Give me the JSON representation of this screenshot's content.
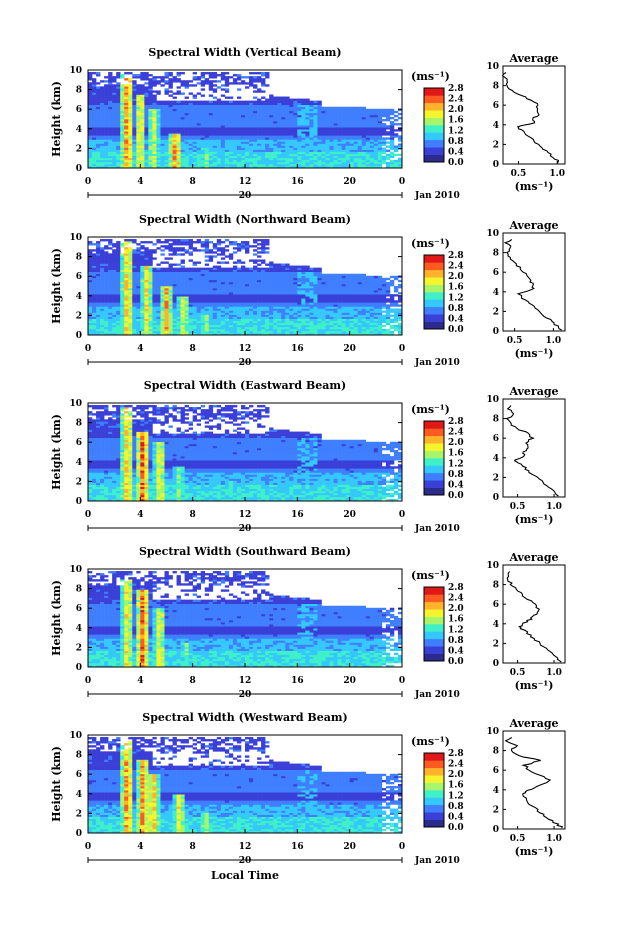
{
  "figure": {
    "xlabel_bottom": "Local Time",
    "colorbar": {
      "unit_label": "(ms⁻¹)",
      "ticks": [
        "2.8",
        "2.4",
        "2.0",
        "1.6",
        "1.2",
        "0.8",
        "0.4",
        "0.0"
      ],
      "range": [
        0,
        2.8
      ],
      "colormap": [
        "#2b2b8c",
        "#3a3fd8",
        "#3f7fff",
        "#35c8ff",
        "#3ff0c8",
        "#a8f56a",
        "#f5f52e",
        "#ffb32a",
        "#ff5a1f",
        "#e01818"
      ]
    }
  },
  "chart_data": [
    {
      "type": "heatmap",
      "title": "Spectral Width (Vertical Beam)",
      "ylabel": "Height (km)",
      "ylim": [
        0,
        10
      ],
      "xlim": [
        0,
        24
      ],
      "x_ticks": [
        "0",
        "4",
        "8",
        "12",
        "16",
        "20",
        "0"
      ],
      "date_label": "20",
      "month_label": "Jan 2010",
      "value_unit": "ms-1",
      "features": [
        {
          "time": 3.0,
          "height_top": 9.5,
          "peak": 2.6
        },
        {
          "time": 4.0,
          "height_top": 7.5,
          "peak": 2.2
        },
        {
          "time": 5.0,
          "height_top": 6.0,
          "peak": 2.0
        },
        {
          "time": 6.7,
          "height_top": 3.5,
          "peak": 2.6
        },
        {
          "time": 9.0,
          "height_top": 2.0,
          "peak": 1.6
        }
      ],
      "average": {
        "title": "Average",
        "xlabel": "(ms⁻¹)",
        "x_ticks": [
          "0.5",
          "1.0"
        ],
        "xlim": [
          0.3,
          1.1
        ],
        "y_ticks": [
          "0",
          "2",
          "4",
          "6",
          "8",
          "10"
        ],
        "ylim": [
          0,
          10
        ],
        "profile": {
          "height": [
            0.1,
            0.5,
            1,
            1.5,
            2,
            2.5,
            3,
            3.5,
            3.8,
            4.2,
            4.6,
            5,
            5.5,
            6,
            6.5,
            7,
            7.5,
            8,
            8.5,
            9,
            9.5
          ],
          "value": [
            1.02,
            0.98,
            0.9,
            0.82,
            0.75,
            0.68,
            0.6,
            0.52,
            0.5,
            0.7,
            0.68,
            0.74,
            0.72,
            0.75,
            0.68,
            0.52,
            0.42,
            0.34,
            0.35,
            0.3,
            0.38
          ]
        }
      }
    },
    {
      "type": "heatmap",
      "title": "Spectral Width (Northward Beam)",
      "ylabel": "Height (km)",
      "ylim": [
        0,
        10
      ],
      "xlim": [
        0,
        24
      ],
      "x_ticks": [
        "0",
        "4",
        "8",
        "12",
        "16",
        "20",
        "0"
      ],
      "date_label": "20",
      "month_label": "Jan 2010",
      "value_unit": "ms-1",
      "features": [
        {
          "time": 3.0,
          "height_top": 9.5,
          "peak": 2.4
        },
        {
          "time": 4.5,
          "height_top": 7.0,
          "peak": 2.2
        },
        {
          "time": 6.0,
          "height_top": 5.0,
          "peak": 2.4
        },
        {
          "time": 7.3,
          "height_top": 4.0,
          "peak": 2.0
        },
        {
          "time": 9.0,
          "height_top": 2.0,
          "peak": 1.8
        }
      ],
      "average": {
        "title": "Average",
        "xlabel": "(ms⁻¹)",
        "x_ticks": [
          "0.5",
          "1.0"
        ],
        "xlim": [
          0.35,
          1.15
        ],
        "y_ticks": [
          "0",
          "2",
          "4",
          "6",
          "8",
          "10"
        ],
        "ylim": [
          0,
          10
        ],
        "profile": {
          "height": [
            0.1,
            0.5,
            1,
            1.5,
            2,
            2.5,
            3,
            3.5,
            3.8,
            4.2,
            4.6,
            5,
            5.5,
            6,
            6.5,
            7,
            7.5,
            8,
            8.5,
            9,
            9.5
          ],
          "value": [
            1.1,
            1.05,
            0.98,
            0.9,
            0.82,
            0.74,
            0.66,
            0.58,
            0.56,
            0.72,
            0.74,
            0.7,
            0.66,
            0.62,
            0.56,
            0.5,
            0.44,
            0.4,
            0.44,
            0.4,
            0.46
          ]
        }
      }
    },
    {
      "type": "heatmap",
      "title": "Spectral Width (Eastward Beam)",
      "ylabel": "Height (km)",
      "ylim": [
        0,
        10
      ],
      "xlim": [
        0,
        24
      ],
      "x_ticks": [
        "0",
        "4",
        "8",
        "12",
        "16",
        "20",
        "0"
      ],
      "date_label": "20",
      "month_label": "Jan 2010",
      "value_unit": "ms-1",
      "features": [
        {
          "time": 3.0,
          "height_top": 9.5,
          "peak": 2.4
        },
        {
          "time": 4.2,
          "height_top": 7.0,
          "peak": 2.8
        },
        {
          "time": 5.5,
          "height_top": 6.0,
          "peak": 2.2
        },
        {
          "time": 7.0,
          "height_top": 3.5,
          "peak": 1.8
        },
        {
          "time": 11.0,
          "height_top": 2.0,
          "peak": 1.4
        }
      ],
      "average": {
        "title": "Average",
        "xlabel": "(ms⁻¹)",
        "x_ticks": [
          "0.5",
          "1.0"
        ],
        "xlim": [
          0.3,
          1.15
        ],
        "y_ticks": [
          "0",
          "2",
          "4",
          "6",
          "8",
          "10"
        ],
        "ylim": [
          0,
          10
        ],
        "profile": {
          "height": [
            0.1,
            0.5,
            1,
            1.5,
            2,
            2.5,
            3,
            3.5,
            3.8,
            4.2,
            4.6,
            5,
            5.5,
            6,
            6.5,
            7,
            7.5,
            8,
            8.5,
            9,
            9.5
          ],
          "value": [
            1.08,
            1.0,
            0.92,
            0.84,
            0.76,
            0.68,
            0.6,
            0.5,
            0.46,
            0.6,
            0.58,
            0.66,
            0.62,
            0.7,
            0.66,
            0.48,
            0.4,
            0.36,
            0.44,
            0.38,
            0.42
          ]
        }
      }
    },
    {
      "type": "heatmap",
      "title": "Spectral Width (Southward Beam)",
      "ylabel": "Height (km)",
      "ylim": [
        0,
        10
      ],
      "xlim": [
        0,
        24
      ],
      "x_ticks": [
        "0",
        "4",
        "8",
        "12",
        "16",
        "20",
        "0"
      ],
      "date_label": "20",
      "month_label": "Jan 2010",
      "value_unit": "ms-1",
      "features": [
        {
          "time": 3.0,
          "height_top": 9.0,
          "peak": 2.2
        },
        {
          "time": 4.2,
          "height_top": 8.0,
          "peak": 2.8
        },
        {
          "time": 5.5,
          "height_top": 6.0,
          "peak": 2.2
        },
        {
          "time": 7.5,
          "height_top": 2.5,
          "peak": 1.6
        },
        {
          "time": 12.0,
          "height_top": 1.5,
          "peak": 1.2
        }
      ],
      "average": {
        "title": "Average",
        "xlabel": "(ms⁻¹)",
        "x_ticks": [
          "0.5",
          "1.0"
        ],
        "xlim": [
          0.3,
          1.15
        ],
        "y_ticks": [
          "0",
          "2",
          "4",
          "6",
          "8",
          "10"
        ],
        "ylim": [
          0,
          10
        ],
        "profile": {
          "height": [
            0.1,
            0.5,
            1,
            1.5,
            2,
            2.5,
            3,
            3.5,
            3.8,
            4.2,
            4.6,
            5,
            5.5,
            6,
            6.5,
            7,
            7.5,
            8,
            8.5,
            9,
            9.5
          ],
          "value": [
            1.1,
            1.04,
            0.96,
            0.88,
            0.8,
            0.72,
            0.64,
            0.56,
            0.54,
            0.62,
            0.7,
            0.76,
            0.78,
            0.72,
            0.64,
            0.56,
            0.48,
            0.42,
            0.38,
            0.36,
            0.4
          ]
        }
      }
    },
    {
      "type": "heatmap",
      "title": "Spectral Width (Westward Beam)",
      "ylabel": "Height (km)",
      "ylim": [
        0,
        10
      ],
      "xlim": [
        0,
        24
      ],
      "x_ticks": [
        "0",
        "4",
        "8",
        "12",
        "16",
        "20",
        "0"
      ],
      "date_label": "20",
      "month_label": "Jan 2010",
      "value_unit": "ms-1",
      "features": [
        {
          "time": 3.0,
          "height_top": 9.5,
          "peak": 2.6
        },
        {
          "time": 4.2,
          "height_top": 7.5,
          "peak": 2.6
        },
        {
          "time": 5.0,
          "height_top": 6.0,
          "peak": 2.4
        },
        {
          "time": 7.0,
          "height_top": 4.0,
          "peak": 2.2
        },
        {
          "time": 9.0,
          "height_top": 2.0,
          "peak": 2.0
        }
      ],
      "average": {
        "title": "Average",
        "xlabel": "(ms⁻¹)",
        "x_ticks": [
          "0.5",
          "1.0"
        ],
        "xlim": [
          0.3,
          1.15
        ],
        "y_ticks": [
          "0",
          "2",
          "4",
          "6",
          "8",
          "10"
        ],
        "ylim": [
          0,
          10
        ],
        "profile": {
          "height": [
            0.1,
            0.5,
            1,
            1.5,
            2,
            2.5,
            3,
            3.5,
            3.8,
            4.2,
            4.6,
            5,
            5.5,
            6,
            6.5,
            7,
            7.5,
            8,
            8.5,
            9,
            9.5
          ],
          "value": [
            1.12,
            1.04,
            0.94,
            0.84,
            0.76,
            0.68,
            0.62,
            0.58,
            0.6,
            0.72,
            0.86,
            0.94,
            0.8,
            0.66,
            0.6,
            0.82,
            0.5,
            0.42,
            0.48,
            0.36,
            0.44
          ]
        }
      }
    }
  ]
}
